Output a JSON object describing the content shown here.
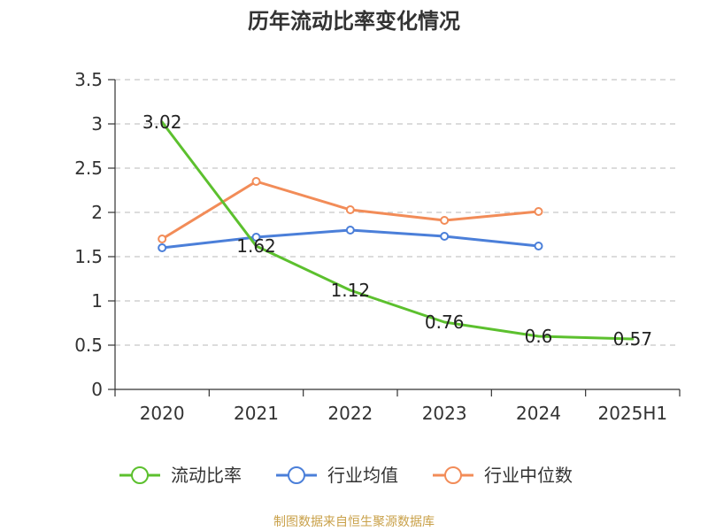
{
  "page": {
    "title": "历年流动比率变化情况",
    "source": "制图数据来自恒生聚源数据库",
    "source_color": "#c9a14a"
  },
  "chart_data": {
    "type": "line",
    "title": "历年流动比率变化情况",
    "categories": [
      "2020",
      "2021",
      "2022",
      "2023",
      "2024",
      "2025H1"
    ],
    "yticks": [
      "0",
      "0.5",
      "1",
      "1.5",
      "2",
      "2.5",
      "3",
      "3.5"
    ],
    "ylim": [
      0,
      3.5
    ],
    "grid": true,
    "legend_position": "bottom",
    "series": [
      {
        "name": "流动比率",
        "color": "#5cc02e",
        "values": [
          3.02,
          1.62,
          1.12,
          0.76,
          0.6,
          0.57
        ],
        "labels": [
          "3.02",
          "1.62",
          "1.12",
          "0.76",
          "0.6",
          "0.57"
        ],
        "show_labels": true,
        "markers": false
      },
      {
        "name": "行业均值",
        "color": "#4b7fd9",
        "values": [
          1.6,
          1.72,
          1.8,
          1.73,
          1.62,
          null
        ],
        "show_labels": false,
        "markers": true
      },
      {
        "name": "行业中位数",
        "color": "#f28c58",
        "values": [
          1.7,
          2.35,
          2.03,
          1.91,
          2.01,
          null
        ],
        "show_labels": false,
        "markers": true
      }
    ]
  }
}
